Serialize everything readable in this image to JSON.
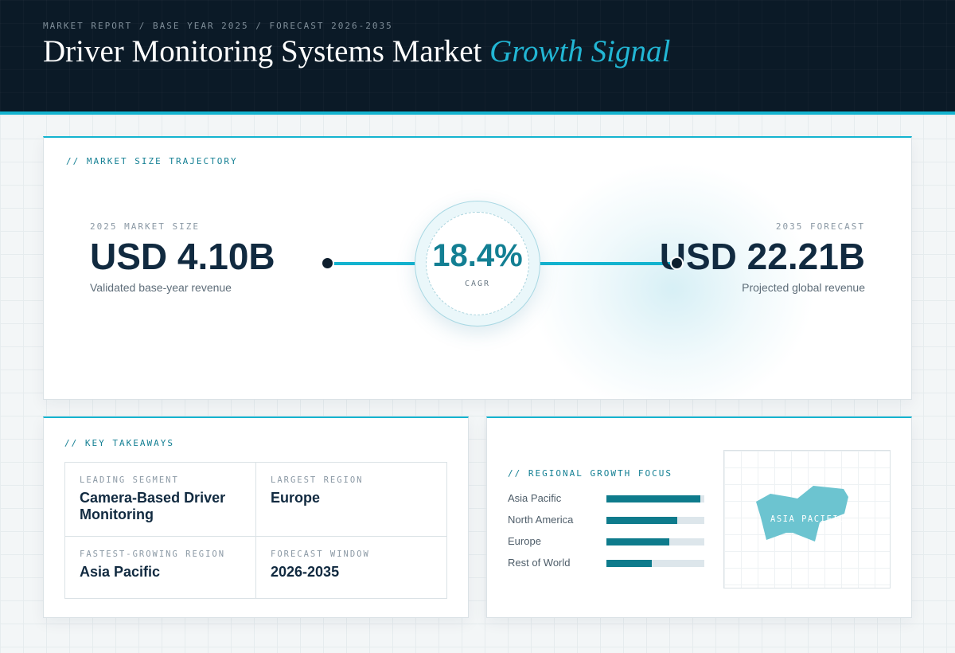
{
  "header": {
    "eyebrow": "MARKET REPORT / BASE YEAR 2025 / FORECAST 2026-2035",
    "title_main": "Driver Monitoring Systems Market",
    "title_accent": "Growth Signal"
  },
  "trajectory": {
    "label": "// MARKET SIZE TRAJECTORY",
    "start": {
      "label": "2025 MARKET SIZE",
      "value": "USD 4.10B",
      "sub": "Validated base-year revenue"
    },
    "end": {
      "label": "2035 FORECAST",
      "value": "USD 22.21B",
      "sub": "Projected global revenue"
    },
    "cagr": {
      "value": "18.4%",
      "label": "CAGR"
    }
  },
  "takeaways": {
    "label": "// KEY TAKEAWAYS",
    "items": [
      {
        "label": "LEADING SEGMENT",
        "value": "Camera-Based Driver Monitoring"
      },
      {
        "label": "LARGEST REGION",
        "value": "Europe"
      },
      {
        "label": "FASTEST-GROWING REGION",
        "value": "Asia Pacific"
      },
      {
        "label": "FORECAST WINDOW",
        "value": "2026-2035"
      }
    ]
  },
  "regional": {
    "label": "// REGIONAL GROWTH FOCUS",
    "bars": [
      {
        "name": "Asia Pacific",
        "level": 0.96
      },
      {
        "name": "North America",
        "level": 0.72
      },
      {
        "name": "Europe",
        "level": 0.64
      },
      {
        "name": "Rest of World",
        "level": 0.46
      }
    ],
    "map_label": "ASIA PACIFIC",
    "bar_color": "#0e7b8c",
    "map_color": "#6cc4d0"
  },
  "colors": {
    "accent": "#13b3cf",
    "header_bg": "#0b1a27",
    "ink": "#112a40"
  }
}
